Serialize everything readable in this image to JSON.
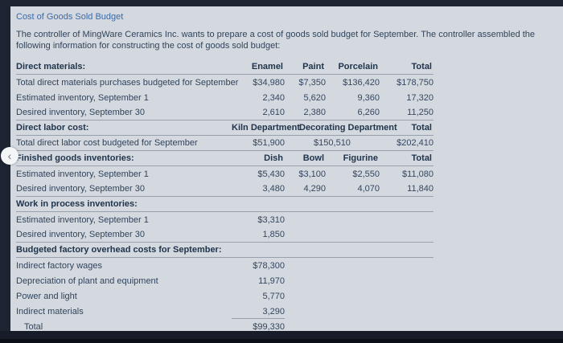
{
  "header": {
    "title": "Cost of Goods Sold Budget",
    "intro": "The controller of MingWare Ceramics Inc. wants to prepare a cost of goods sold budget for September. The controller assembled the following information for constructing the cost of goods sold budget:"
  },
  "back_button": {
    "icon": "‹"
  },
  "direct_materials": {
    "label": "Direct materials:",
    "headers": [
      "Enamel",
      "Paint",
      "Porcelain",
      "Total"
    ],
    "rows": [
      {
        "label": "Total direct materials purchases budgeted for September",
        "values": [
          "$34,980",
          "$7,350",
          "$136,420",
          "$178,750"
        ]
      },
      {
        "label": "Estimated inventory, September 1",
        "values": [
          "2,340",
          "5,620",
          "9,360",
          "17,320"
        ]
      },
      {
        "label": "Desired inventory, September 30",
        "values": [
          "2,610",
          "2,380",
          "6,260",
          "11,250"
        ]
      }
    ]
  },
  "direct_labor": {
    "label": "Direct labor cost:",
    "headers": [
      "Kiln Department",
      "Decorating Department",
      "Total"
    ],
    "rows": [
      {
        "label": "Total direct labor cost budgeted for September",
        "values": [
          "$51,900",
          "$150,510",
          "$202,410"
        ]
      }
    ]
  },
  "finished_goods": {
    "label": "Finished goods inventories:",
    "headers": [
      "Dish",
      "Bowl",
      "Figurine",
      "Total"
    ],
    "rows": [
      {
        "label": "Estimated inventory, September 1",
        "values": [
          "$5,430",
          "$3,100",
          "$2,550",
          "$11,080"
        ]
      },
      {
        "label": "Desired inventory, September 30",
        "values": [
          "3,480",
          "4,290",
          "4,070",
          "11,840"
        ]
      }
    ]
  },
  "work_in_process": {
    "label": "Work in process inventories:",
    "rows": [
      {
        "label": "Estimated inventory, September 1",
        "value": "$3,310"
      },
      {
        "label": "Desired inventory, September 30",
        "value": "1,850"
      }
    ]
  },
  "overhead": {
    "label": "Budgeted factory overhead costs for September:",
    "rows": [
      {
        "label": "Indirect factory wages",
        "value": "$78,300"
      },
      {
        "label": "Depreciation of plant and equipment",
        "value": "11,970"
      },
      {
        "label": "Power and light",
        "value": "5,770"
      },
      {
        "label": "Indirect materials",
        "value": "3,290"
      },
      {
        "label": "Total",
        "value": "$99,330"
      }
    ]
  },
  "colors": {
    "chrome": "#1d2532",
    "chrome-bottom": "#161d29",
    "bg": "#d4d9e0",
    "title": "#3b69a8",
    "text": "#31435a",
    "bold": "#20344b",
    "num": "#34465e",
    "rule": "#98a0ac"
  }
}
